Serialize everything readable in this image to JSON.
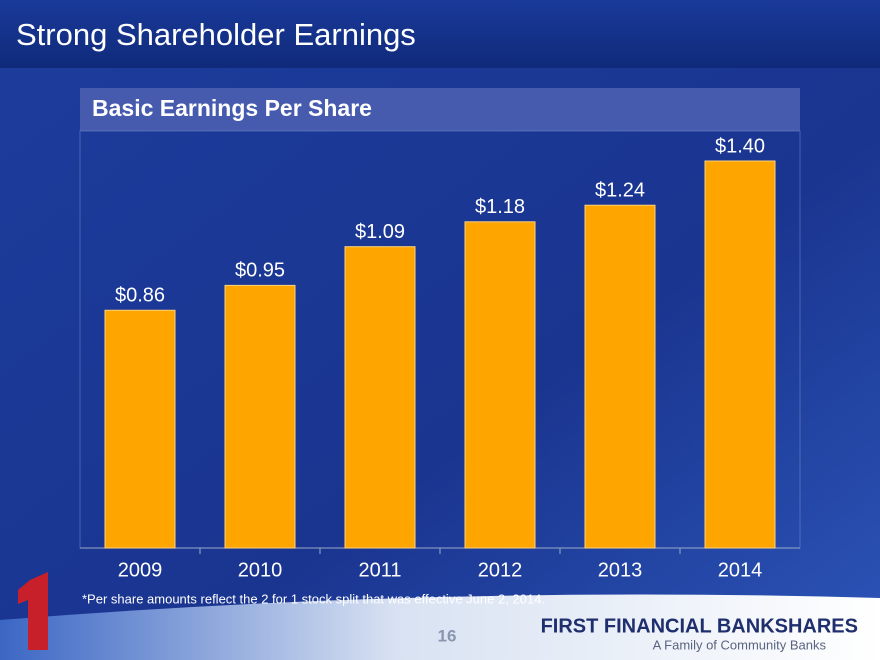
{
  "slide": {
    "title": "Strong Shareholder Earnings",
    "footnote": "*Per share amounts reflect the 2 for 1 stock split that was effective June 2, 2014.",
    "page_number": "16",
    "logo": "FIRST FINANCIAL BANKSHARES",
    "tagline": "A Family of Community Banks"
  },
  "chart_data": {
    "type": "bar",
    "title": "Basic Earnings Per Share",
    "categories": [
      "2009",
      "2010",
      "2011",
      "2012",
      "2013",
      "2014"
    ],
    "values": [
      0.86,
      0.95,
      1.09,
      1.18,
      1.24,
      1.4
    ],
    "value_labels": [
      "$0.86",
      "$0.95",
      "$1.09",
      "$1.18",
      "$1.24",
      "$1.40"
    ],
    "color": "#ffa500"
  }
}
